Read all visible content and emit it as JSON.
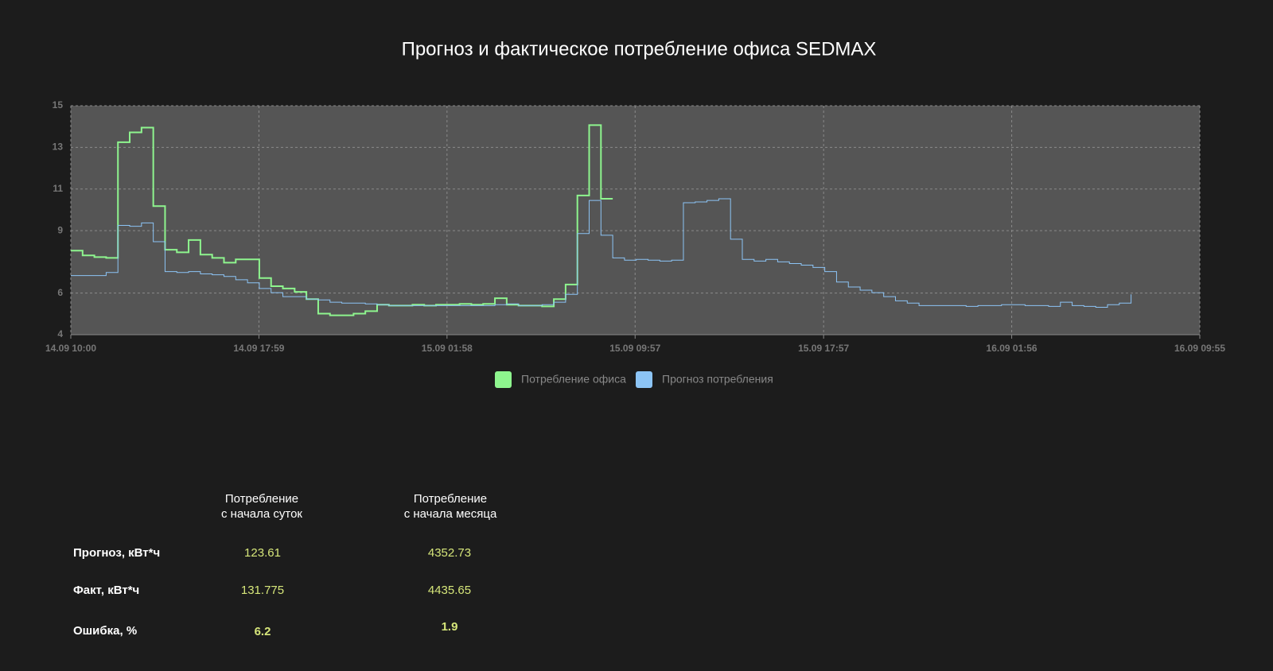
{
  "chart_data": {
    "type": "step-line",
    "title": "Прогноз и фактическое потребление офиса SEDMAX",
    "x": [
      "14.09 10:00",
      "14.09 10:30",
      "14.09 11:00",
      "14.09 11:30",
      "14.09 12:00",
      "14.09 12:30",
      "14.09 13:00",
      "14.09 13:30",
      "14.09 14:00",
      "14.09 14:30",
      "14.09 15:00",
      "14.09 15:30",
      "14.09 16:00",
      "14.09 16:30",
      "14.09 17:00",
      "14.09 17:30",
      "14.09 18:00",
      "14.09 18:30",
      "14.09 19:00",
      "14.09 19:30",
      "14.09 20:00",
      "14.09 20:30",
      "14.09 21:00",
      "14.09 21:30",
      "14.09 22:00",
      "14.09 22:30",
      "14.09 23:00",
      "14.09 23:30",
      "15.09 00:00",
      "15.09 00:30",
      "15.09 01:00",
      "15.09 01:30",
      "15.09 02:00",
      "15.09 02:30",
      "15.09 03:00",
      "15.09 03:30",
      "15.09 04:00",
      "15.09 04:30",
      "15.09 05:00",
      "15.09 05:30",
      "15.09 06:00",
      "15.09 06:30",
      "15.09 07:00",
      "15.09 07:30",
      "15.09 08:00",
      "15.09 08:30",
      "15.09 09:00",
      "15.09 09:30",
      "15.09 10:00",
      "15.09 10:30",
      "15.09 11:00",
      "15.09 11:30",
      "15.09 12:00",
      "15.09 12:30",
      "15.09 13:00",
      "15.09 13:30",
      "15.09 14:00",
      "15.09 14:30",
      "15.09 15:00",
      "15.09 15:30",
      "15.09 16:00",
      "15.09 16:30",
      "15.09 17:00",
      "15.09 17:30",
      "15.09 18:00",
      "15.09 18:30",
      "15.09 19:00",
      "15.09 19:30",
      "15.09 20:00",
      "15.09 20:30",
      "15.09 21:00",
      "15.09 21:30",
      "15.09 22:00",
      "15.09 22:30",
      "15.09 23:00",
      "15.09 23:30",
      "16.09 00:00",
      "16.09 00:30",
      "16.09 01:00",
      "16.09 01:30",
      "16.09 02:00",
      "16.09 02:30",
      "16.09 03:00",
      "16.09 03:30",
      "16.09 04:00",
      "16.09 04:30",
      "16.09 05:00",
      "16.09 05:30",
      "16.09 06:00",
      "16.09 06:30",
      "16.09 07:00"
    ],
    "series": [
      {
        "name": "Потребление офиса",
        "color": "#8ef58e",
        "width": 2,
        "values": [
          8.04,
          7.81,
          7.73,
          7.69,
          13.25,
          13.72,
          13.95,
          10.18,
          8.08,
          7.96,
          8.55,
          7.85,
          7.69,
          7.46,
          7.62,
          7.62,
          6.72,
          6.33,
          6.22,
          6.06,
          5.71,
          5.01,
          4.93,
          4.93,
          5.01,
          5.13,
          5.44,
          5.4,
          5.4,
          5.44,
          5.4,
          5.44,
          5.44,
          5.48,
          5.44,
          5.48,
          5.75,
          5.44,
          5.4,
          5.4,
          5.36,
          5.71,
          6.41,
          10.69,
          14.07,
          10.53,
          null,
          null,
          null,
          null,
          null,
          null,
          null,
          null,
          null,
          null,
          null,
          null,
          null,
          null,
          null,
          null,
          null,
          null,
          null,
          null,
          null,
          null,
          null,
          null,
          null,
          null,
          null,
          null,
          null,
          null,
          null,
          null,
          null,
          null,
          null,
          null,
          null,
          null,
          null,
          null,
          null,
          null,
          null,
          null,
          null
        ]
      },
      {
        "name": "Прогноз потребления",
        "color": "#8cc4f5",
        "width": 1,
        "values": [
          6.84,
          6.84,
          6.84,
          6.99,
          9.25,
          9.21,
          9.37,
          8.47,
          7.03,
          6.99,
          7.03,
          6.92,
          6.88,
          6.8,
          6.64,
          6.49,
          6.22,
          6.02,
          5.83,
          5.83,
          5.71,
          5.67,
          5.56,
          5.52,
          5.52,
          5.48,
          5.44,
          5.4,
          5.4,
          5.4,
          5.4,
          5.4,
          5.4,
          5.4,
          5.4,
          5.4,
          5.44,
          5.48,
          5.4,
          5.4,
          5.44,
          5.56,
          5.94,
          8.86,
          10.45,
          8.78,
          7.69,
          7.58,
          7.62,
          7.58,
          7.54,
          7.58,
          10.34,
          10.38,
          10.45,
          10.53,
          8.59,
          7.62,
          7.54,
          7.62,
          7.5,
          7.42,
          7.34,
          7.23,
          7.03,
          6.53,
          6.29,
          6.14,
          6.02,
          5.83,
          5.63,
          5.52,
          5.4,
          5.4,
          5.4,
          5.4,
          5.36,
          5.4,
          5.4,
          5.44,
          5.44,
          5.4,
          5.4,
          5.36,
          5.56,
          5.4,
          5.36,
          5.32,
          5.44,
          5.52,
          5.94
        ]
      }
    ],
    "xlim": [
      "14.09 10:00",
      "16.09 09:55"
    ],
    "xticks": [
      "14.09 10:00",
      "14.09 17:59",
      "15.09 01:58",
      "15.09 09:57",
      "15.09 17:57",
      "16.09 01:56",
      "16.09 09:55"
    ],
    "ylim": [
      4,
      15
    ],
    "yticks": [
      4,
      6,
      9,
      11,
      13,
      15
    ],
    "grid": true
  },
  "table": {
    "columns": [
      "Потребление\nс начала суток",
      "Потребление\nс начала месяца"
    ],
    "rows": [
      {
        "label": "Прогноз, кВт*ч",
        "cells": [
          "123.61",
          "4352.73"
        ]
      },
      {
        "label": "Факт, кВт*ч",
        "cells": [
          "131.775",
          "4435.65"
        ]
      },
      {
        "label": "Ошибка, %",
        "cells": [
          "6.2",
          "1.9"
        ]
      }
    ]
  }
}
